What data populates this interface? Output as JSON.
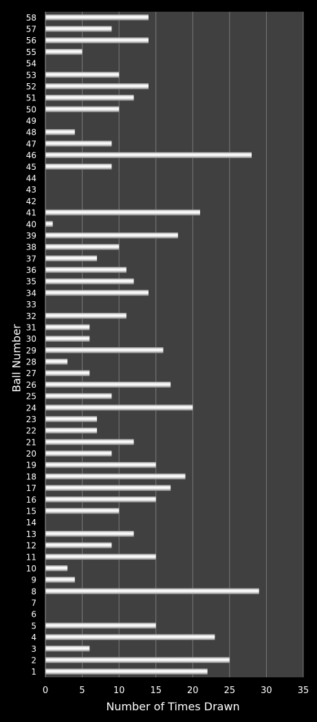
{
  "chart_data": {
    "type": "bar",
    "orientation": "horizontal",
    "xlabel": "Number of Times Drawn",
    "ylabel": "Ball Number",
    "xlim": [
      0,
      35
    ],
    "x_ticks": [
      0,
      5,
      10,
      15,
      20,
      25,
      30,
      35
    ],
    "grid": "vertical",
    "categories": [
      "1",
      "2",
      "3",
      "4",
      "5",
      "6",
      "7",
      "8",
      "9",
      "10",
      "11",
      "12",
      "13",
      "14",
      "15",
      "16",
      "17",
      "18",
      "19",
      "20",
      "21",
      "22",
      "23",
      "24",
      "25",
      "26",
      "27",
      "28",
      "29",
      "30",
      "31",
      "32",
      "33",
      "34",
      "35",
      "36",
      "37",
      "38",
      "39",
      "40",
      "41",
      "42",
      "43",
      "44",
      "45",
      "46",
      "47",
      "48",
      "49",
      "50",
      "51",
      "52",
      "53",
      "54",
      "55",
      "56",
      "57",
      "58"
    ],
    "values": [
      22,
      25,
      6,
      23,
      15,
      0,
      0,
      29,
      4,
      3,
      15,
      9,
      12,
      0,
      10,
      15,
      17,
      19,
      15,
      9,
      12,
      7,
      7,
      20,
      9,
      17,
      6,
      3,
      16,
      6,
      6,
      11,
      0,
      14,
      12,
      11,
      7,
      10,
      18,
      1,
      21,
      0,
      0,
      0,
      9,
      28,
      9,
      4,
      0,
      10,
      12,
      14,
      10,
      0,
      5,
      14,
      9,
      14
    ],
    "colors": {
      "background": "#000000",
      "plot_area": "#404040",
      "bar_light": "#ffffff",
      "bar_dark": "#8a8a8a",
      "grid": "#7a7a7a",
      "text": "#ffffff"
    }
  }
}
